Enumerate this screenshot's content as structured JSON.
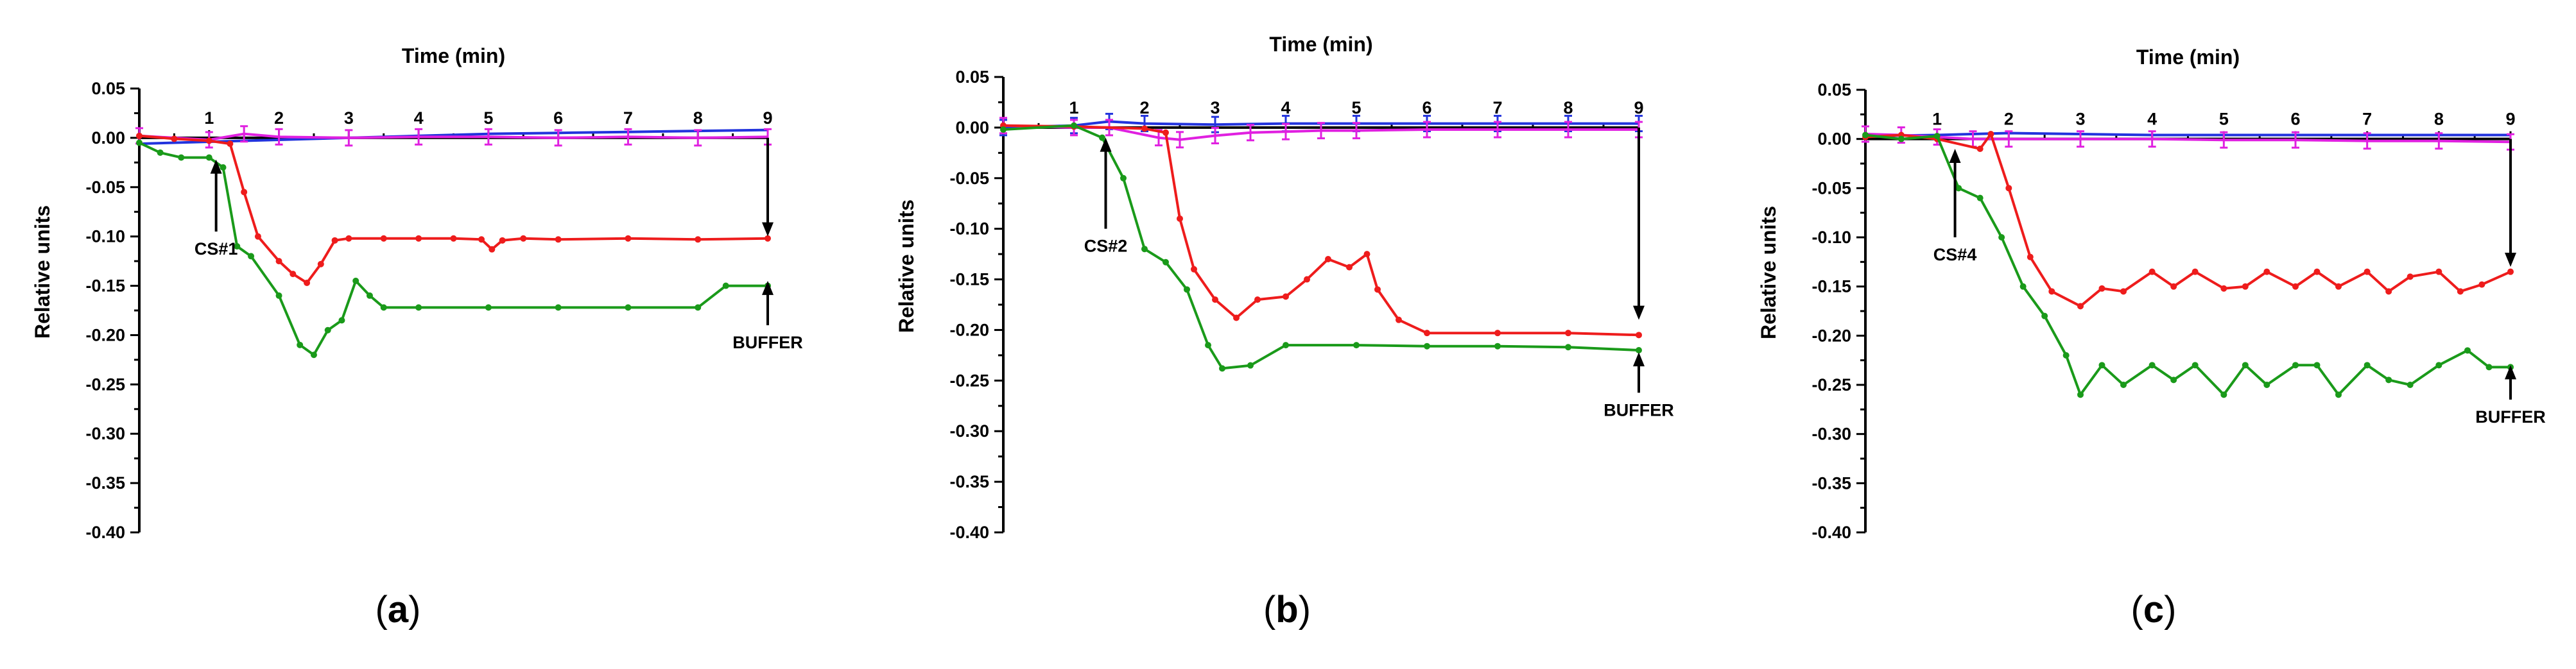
{
  "figure": {
    "panels": [
      {
        "caption": {
          "open": "(",
          "letter": "a",
          "close": ")"
        }
      },
      {
        "caption": {
          "open": "(",
          "letter": "b",
          "close": ")"
        }
      },
      {
        "caption": {
          "open": "(",
          "letter": "c",
          "close": ")"
        }
      }
    ]
  },
  "chart_data": [
    {
      "type": "line",
      "panel": "a",
      "xlabel": "Time (min)",
      "ylabel": "Relative units",
      "xlim": [
        0,
        9
      ],
      "ylim": [
        -0.4,
        0.05
      ],
      "x_ticks": [
        1,
        2,
        3,
        4,
        5,
        6,
        7,
        8,
        9
      ],
      "y_ticks": [
        0.05,
        0.0,
        -0.05,
        -0.1,
        -0.15,
        -0.2,
        -0.25,
        -0.3,
        -0.35,
        -0.4
      ],
      "y_tick_labels": [
        "0.05",
        "0.00",
        "-0.05",
        "-0.10",
        "-0.15",
        "-0.20",
        "-0.25",
        "-0.30",
        "-0.35",
        "-0.40"
      ],
      "annotations": [
        {
          "text": "CS#1",
          "x": 1.1,
          "arrow_from": -0.095,
          "arrow_to": -0.022
        },
        {
          "text": "BUFFER",
          "x": 9.0,
          "arrow_from": 0.0,
          "arrow_to": -0.1
        },
        {
          "text": "",
          "x": 9.0,
          "arrow_from": -0.19,
          "arrow_to": -0.145
        }
      ],
      "series": [
        {
          "name": "blue",
          "color": "#2233dd",
          "marker": "line",
          "x": [
            0,
            1,
            2,
            3,
            4,
            5,
            6,
            7,
            8,
            9
          ],
          "y": [
            -0.006,
            -0.004,
            -0.002,
            0.0,
            0.002,
            0.004,
            0.005,
            0.006,
            0.007,
            0.008
          ]
        },
        {
          "name": "magenta",
          "color": "#e020e0",
          "marker": "bar",
          "x": [
            0,
            1,
            1.5,
            2,
            3,
            4,
            5,
            6,
            7,
            8,
            9
          ],
          "y": [
            0.002,
            -0.002,
            0.004,
            0.001,
            0.0,
            0.001,
            0.001,
            0.0,
            0.001,
            0.0,
            0.001
          ]
        },
        {
          "name": "red",
          "color": "#ee1c1c",
          "marker": "dot",
          "x": [
            0,
            0.5,
            1.0,
            1.3,
            1.5,
            1.7,
            2.0,
            2.2,
            2.4,
            2.6,
            2.8,
            3.0,
            3.5,
            4.0,
            4.5,
            4.9,
            5.05,
            5.2,
            5.5,
            6.0,
            7.0,
            8.0,
            9.0
          ],
          "y": [
            0.002,
            -0.001,
            -0.003,
            -0.006,
            -0.055,
            -0.1,
            -0.125,
            -0.138,
            -0.147,
            -0.128,
            -0.104,
            -0.102,
            -0.102,
            -0.102,
            -0.102,
            -0.103,
            -0.113,
            -0.104,
            -0.102,
            -0.103,
            -0.102,
            -0.103,
            -0.102
          ]
        },
        {
          "name": "green",
          "color": "#1a9a1a",
          "marker": "dot",
          "x": [
            0,
            0.3,
            0.6,
            1.0,
            1.2,
            1.4,
            1.6,
            2.0,
            2.3,
            2.5,
            2.7,
            2.9,
            3.1,
            3.3,
            3.5,
            4.0,
            5.0,
            6.0,
            7.0,
            8.0,
            8.4,
            9.0
          ],
          "y": [
            -0.005,
            -0.015,
            -0.02,
            -0.02,
            -0.03,
            -0.11,
            -0.12,
            -0.16,
            -0.21,
            -0.22,
            -0.195,
            -0.185,
            -0.145,
            -0.16,
            -0.172,
            -0.172,
            -0.172,
            -0.172,
            -0.172,
            -0.172,
            -0.15,
            -0.15
          ]
        }
      ]
    },
    {
      "type": "line",
      "panel": "b",
      "xlabel": "Time (min)",
      "ylabel": "Relative units",
      "xlim": [
        0,
        9
      ],
      "ylim": [
        -0.4,
        0.05
      ],
      "x_ticks": [
        1,
        2,
        3,
        4,
        5,
        6,
        7,
        8,
        9
      ],
      "y_ticks": [
        0.05,
        0.0,
        -0.05,
        -0.1,
        -0.15,
        -0.2,
        -0.25,
        -0.3,
        -0.35,
        -0.4
      ],
      "y_tick_labels": [
        "0.05",
        "0.00",
        "-0.05",
        "-0.10",
        "-0.15",
        "-0.20",
        "-0.25",
        "-0.30",
        "-0.35",
        "-0.40"
      ],
      "annotations": [
        {
          "text": "CS#2",
          "x": 1.45,
          "arrow_from": -0.1,
          "arrow_to": -0.01
        },
        {
          "text": "BUFFER",
          "x": 9.0,
          "arrow_from": 0.0,
          "arrow_to": -0.19
        },
        {
          "text": "",
          "x": 9.0,
          "arrow_from": -0.262,
          "arrow_to": -0.222
        }
      ],
      "series": [
        {
          "name": "blue",
          "color": "#2233dd",
          "marker": "bar",
          "x": [
            0,
            1,
            1.5,
            2,
            3,
            4,
            5,
            6,
            7,
            8,
            9
          ],
          "y": [
            0.0,
            0.002,
            0.006,
            0.004,
            0.003,
            0.004,
            0.004,
            0.004,
            0.004,
            0.004,
            0.004
          ]
        },
        {
          "name": "magenta",
          "color": "#e020e0",
          "marker": "bar",
          "x": [
            0,
            1,
            1.5,
            2.2,
            2.5,
            3.0,
            3.5,
            4.0,
            4.5,
            5.0,
            6.0,
            7.0,
            8.0,
            9.0
          ],
          "y": [
            0.002,
            0.0,
            0.0,
            -0.01,
            -0.012,
            -0.008,
            -0.005,
            -0.004,
            -0.003,
            -0.003,
            -0.002,
            -0.002,
            -0.002,
            -0.002
          ]
        },
        {
          "name": "red",
          "color": "#ee1c1c",
          "marker": "dot",
          "x": [
            0,
            1.0,
            2.0,
            2.3,
            2.5,
            2.7,
            3.0,
            3.3,
            3.6,
            4.0,
            4.3,
            4.6,
            4.9,
            5.15,
            5.3,
            5.6,
            6.0,
            7.0,
            8.0,
            9.0
          ],
          "y": [
            0.002,
            0.001,
            -0.001,
            -0.005,
            -0.09,
            -0.14,
            -0.17,
            -0.188,
            -0.17,
            -0.167,
            -0.15,
            -0.13,
            -0.138,
            -0.125,
            -0.16,
            -0.19,
            -0.203,
            -0.203,
            -0.203,
            -0.205
          ]
        },
        {
          "name": "green",
          "color": "#1a9a1a",
          "marker": "dot",
          "x": [
            0,
            1.0,
            1.4,
            1.7,
            2.0,
            2.3,
            2.6,
            2.9,
            3.1,
            3.5,
            4.0,
            5.0,
            6.0,
            7.0,
            8.0,
            9.0
          ],
          "y": [
            -0.002,
            0.002,
            -0.01,
            -0.05,
            -0.12,
            -0.133,
            -0.16,
            -0.215,
            -0.238,
            -0.235,
            -0.215,
            -0.215,
            -0.216,
            -0.216,
            -0.217,
            -0.22
          ]
        }
      ]
    },
    {
      "type": "line",
      "panel": "c",
      "xlabel": "Time (min)",
      "ylabel": "Relative units",
      "xlim": [
        0,
        9
      ],
      "ylim": [
        -0.4,
        0.05
      ],
      "x_ticks": [
        1,
        2,
        3,
        4,
        5,
        6,
        7,
        8,
        9
      ],
      "y_ticks": [
        0.05,
        0.0,
        -0.05,
        -0.1,
        -0.15,
        -0.2,
        -0.25,
        -0.3,
        -0.35,
        -0.4
      ],
      "y_tick_labels": [
        "0.05",
        "0.00",
        "-0.05",
        "-0.10",
        "-0.15",
        "-0.20",
        "-0.25",
        "-0.30",
        "-0.35",
        "-0.40"
      ],
      "annotations": [
        {
          "text": "CS#4",
          "x": 1.25,
          "arrow_from": -0.1,
          "arrow_to": -0.01
        },
        {
          "text": "BUFFER",
          "x": 9.0,
          "arrow_from": 0.0,
          "arrow_to": -0.13
        },
        {
          "text": "",
          "x": 9.0,
          "arrow_from": -0.265,
          "arrow_to": -0.23
        }
      ],
      "series": [
        {
          "name": "blue",
          "color": "#2233dd",
          "marker": "line",
          "x": [
            0,
            1,
            2,
            3,
            4,
            5,
            6,
            7,
            8,
            9
          ],
          "y": [
            0.003,
            0.004,
            0.006,
            0.005,
            0.004,
            0.004,
            0.004,
            0.004,
            0.004,
            0.004
          ]
        },
        {
          "name": "magenta",
          "color": "#e020e0",
          "marker": "bar",
          "x": [
            0,
            0.5,
            1.0,
            1.5,
            2.0,
            3.0,
            4.0,
            5.0,
            6.0,
            7.0,
            8.0,
            9.0
          ],
          "y": [
            0.005,
            0.004,
            0.002,
            0.0,
            0.0,
            0.0,
            0.0,
            -0.001,
            -0.001,
            -0.002,
            -0.002,
            -0.003
          ]
        },
        {
          "name": "red",
          "color": "#ee1c1c",
          "marker": "dot",
          "x": [
            0,
            0.5,
            1.0,
            1.6,
            1.75,
            2.0,
            2.3,
            2.6,
            3.0,
            3.3,
            3.6,
            4.0,
            4.3,
            4.6,
            5.0,
            5.3,
            5.6,
            6.0,
            6.3,
            6.6,
            7.0,
            7.3,
            7.6,
            8.0,
            8.3,
            8.6,
            9.0
          ],
          "y": [
            0.002,
            0.004,
            0.0,
            -0.01,
            0.005,
            -0.05,
            -0.12,
            -0.155,
            -0.17,
            -0.152,
            -0.155,
            -0.135,
            -0.15,
            -0.135,
            -0.152,
            -0.15,
            -0.135,
            -0.15,
            -0.135,
            -0.15,
            -0.135,
            -0.155,
            -0.14,
            -0.135,
            -0.155,
            -0.148,
            -0.135
          ]
        },
        {
          "name": "green",
          "color": "#1a9a1a",
          "marker": "dot",
          "x": [
            0,
            0.5,
            1.0,
            1.3,
            1.6,
            1.9,
            2.2,
            2.5,
            2.8,
            3.0,
            3.3,
            3.6,
            4.0,
            4.3,
            4.6,
            5.0,
            5.3,
            5.6,
            6.0,
            6.3,
            6.6,
            7.0,
            7.3,
            7.6,
            8.0,
            8.4,
            8.7,
            9.0
          ],
          "y": [
            0.004,
            0.0,
            0.003,
            -0.05,
            -0.06,
            -0.1,
            -0.15,
            -0.18,
            -0.22,
            -0.26,
            -0.23,
            -0.25,
            -0.23,
            -0.245,
            -0.23,
            -0.26,
            -0.23,
            -0.25,
            -0.23,
            -0.23,
            -0.26,
            -0.23,
            -0.245,
            -0.25,
            -0.23,
            -0.215,
            -0.232,
            -0.232
          ]
        }
      ]
    }
  ]
}
